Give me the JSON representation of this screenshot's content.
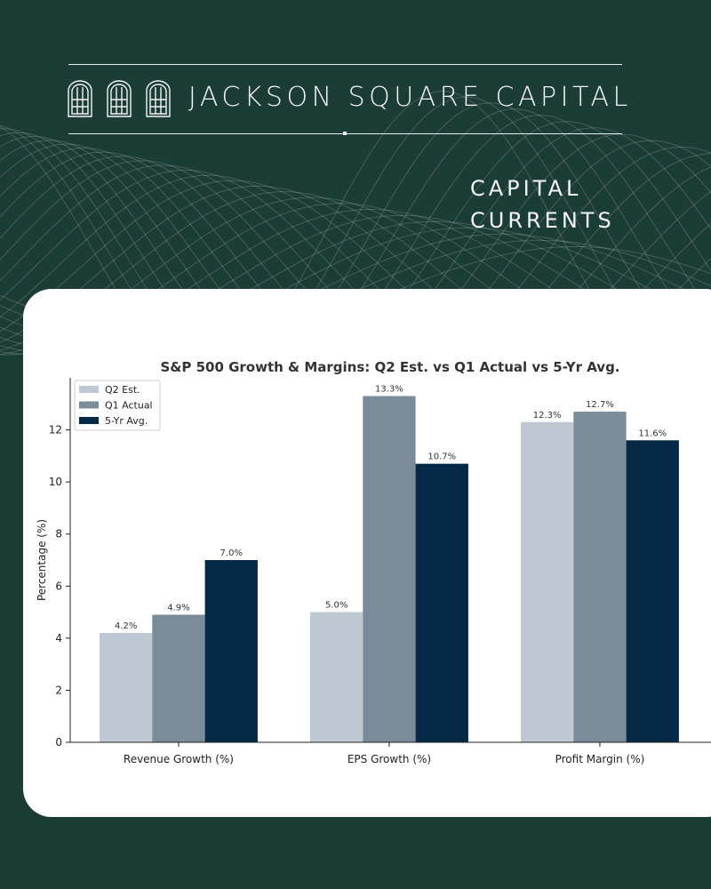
{
  "brand": {
    "name": "JACKSON SQUARE CAPITAL"
  },
  "publication": {
    "line1": "CAPITAL",
    "line2": "CURRENTS"
  },
  "chart_data": {
    "type": "bar",
    "title": "S&P 500 Growth & Margins: Q2 Est. vs Q1 Actual vs 5-Yr Avg.",
    "xlabel": "",
    "ylabel": "Percentage (%)",
    "categories": [
      "Revenue Growth (%)",
      "EPS Growth (%)",
      "Profit Margin (%)"
    ],
    "series": [
      {
        "name": "Q2 Est.",
        "color": "#bec8d2",
        "values": [
          4.2,
          5.0,
          12.3
        ],
        "labels": [
          "4.2%",
          "5.0%",
          "12.3%"
        ]
      },
      {
        "name": "Q1 Actual",
        "color": "#7a8b99",
        "values": [
          4.9,
          13.3,
          12.7
        ],
        "labels": [
          "4.9%",
          "13.3%",
          "12.7%"
        ]
      },
      {
        "name": "5-Yr Avg.",
        "color": "#052944",
        "values": [
          7.0,
          10.7,
          11.6
        ],
        "labels": [
          "7.0%",
          "10.7%",
          "11.6%"
        ]
      }
    ],
    "ylim": [
      0,
      14
    ],
    "yticks": [
      0,
      2,
      4,
      6,
      8,
      10,
      12
    ],
    "grid": false,
    "legend": "top-left"
  },
  "colors": {
    "background": "#1c3d35",
    "card": "#ffffff",
    "text_light": "#f2f5f4"
  }
}
